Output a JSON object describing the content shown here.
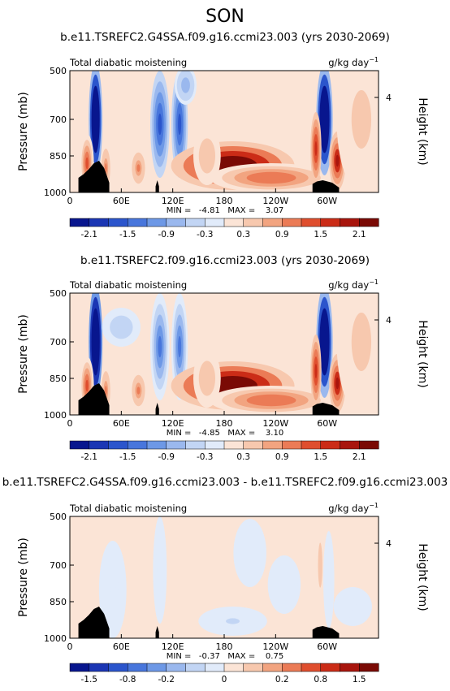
{
  "figure": {
    "season": "SON"
  },
  "chart_data": [
    {
      "type": "heatmap",
      "title": "b.e11.TSREFC2.G4SSA.f09.g16.ccmi23.003 (yrs 2030-2069)",
      "left_label": "Total diabatic moistening",
      "units_label": "g/kg day",
      "units_exponent": "−1",
      "ylabel": "Pressure (mb)",
      "y2label": "Height (km)",
      "yticks": [
        "500",
        "700",
        "850",
        "1000"
      ],
      "yticks_right": [
        "4"
      ],
      "xticks": [
        "0",
        "60E",
        "120E",
        "180",
        "120W",
        "60W"
      ],
      "stats": "MIN =   -4.81   MAX =    3.07",
      "colorbar_labels": [
        "-2.1",
        "-1.5",
        "-0.9",
        "-0.3",
        "0.3",
        "0.9",
        "1.5",
        "2.1"
      ],
      "colorbar_colors": [
        "#08168e",
        "#1b36b4",
        "#2b55cc",
        "#4876dc",
        "#6d98e6",
        "#9ab8ee",
        "#c2d5f4",
        "#e1ebfa",
        "#fbe4d6",
        "#f7c8ae",
        "#f2a480",
        "#eb7b56",
        "#df4e2e",
        "#cb2c17",
        "#a8150d",
        "#7a0a05"
      ],
      "fields": [
        {
          "lon": 30,
          "p": 700,
          "w": 5,
          "h": 230,
          "v": -4.5
        },
        {
          "lon": 20,
          "p": 880,
          "w": 5,
          "h": 120,
          "v": 1.5
        },
        {
          "lon": 42,
          "p": 900,
          "w": 4,
          "h": 100,
          "v": 1.0
        },
        {
          "lon": 105,
          "p": 720,
          "w": 7,
          "h": 220,
          "v": -1.8
        },
        {
          "lon": 128,
          "p": 720,
          "w": 6,
          "h": 220,
          "v": -1.7
        },
        {
          "lon": 135,
          "p": 560,
          "w": 8,
          "h": 80,
          "v": -0.8
        },
        {
          "lon": 190,
          "p": 890,
          "w": 45,
          "h": 100,
          "v": 2.8
        },
        {
          "lon": 235,
          "p": 940,
          "w": 45,
          "h": 60,
          "v": 1.2
        },
        {
          "lon": 297,
          "p": 700,
          "w": 6,
          "h": 230,
          "v": -4.0
        },
        {
          "lon": 287,
          "p": 820,
          "w": 4,
          "h": 150,
          "v": 1.6
        },
        {
          "lon": 312,
          "p": 870,
          "w": 6,
          "h": 120,
          "v": 2.0
        },
        {
          "lon": 80,
          "p": 900,
          "w": 6,
          "h": 80,
          "v": 1.0
        },
        {
          "lon": 160,
          "p": 850,
          "w": 10,
          "h": 120,
          "v": 0.6
        },
        {
          "lon": 340,
          "p": 700,
          "w": 18,
          "h": 300,
          "v": 0.5
        }
      ],
      "terrain": [
        [
          10,
          940
        ],
        [
          16,
          925
        ],
        [
          22,
          905
        ],
        [
          28,
          880
        ],
        [
          34,
          870
        ],
        [
          40,
          900
        ],
        [
          46,
          960
        ],
        [
          100,
          975
        ],
        [
          102,
          950
        ],
        [
          104,
          975
        ],
        [
          283,
          965
        ],
        [
          288,
          955
        ],
        [
          295,
          950
        ],
        [
          306,
          960
        ],
        [
          314,
          980
        ]
      ]
    },
    {
      "type": "heatmap",
      "title": "b.e11.TSREFC2.f09.g16.ccmi23.003 (yrs 2030-2069)",
      "left_label": "Total diabatic moistening",
      "units_label": "g/kg day",
      "units_exponent": "−1",
      "ylabel": "Pressure (mb)",
      "y2label": "Height (km)",
      "yticks": [
        "500",
        "700",
        "850",
        "1000"
      ],
      "yticks_right": [
        "4"
      ],
      "xticks": [
        "0",
        "60E",
        "120E",
        "180",
        "120W",
        "60W"
      ],
      "stats": "MIN =   -4.85   MAX =    3.10",
      "colorbar_labels": [
        "-2.1",
        "-1.5",
        "-0.9",
        "-0.3",
        "0.3",
        "0.9",
        "1.5",
        "2.1"
      ],
      "colorbar_colors": [
        "#08168e",
        "#1b36b4",
        "#2b55cc",
        "#4876dc",
        "#6d98e6",
        "#9ab8ee",
        "#c2d5f4",
        "#e1ebfa",
        "#fbe4d6",
        "#f7c8ae",
        "#f2a480",
        "#eb7b56",
        "#df4e2e",
        "#cb2c17",
        "#a8150d",
        "#7a0a05"
      ],
      "fields": [
        {
          "lon": 30,
          "p": 700,
          "w": 5,
          "h": 230,
          "v": -4.6
        },
        {
          "lon": 20,
          "p": 880,
          "w": 5,
          "h": 120,
          "v": 1.5
        },
        {
          "lon": 42,
          "p": 900,
          "w": 4,
          "h": 100,
          "v": 1.0
        },
        {
          "lon": 105,
          "p": 720,
          "w": 7,
          "h": 220,
          "v": -1.3
        },
        {
          "lon": 128,
          "p": 720,
          "w": 6,
          "h": 220,
          "v": -1.5
        },
        {
          "lon": 60,
          "p": 640,
          "w": 14,
          "h": 80,
          "v": -0.6
        },
        {
          "lon": 190,
          "p": 880,
          "w": 45,
          "h": 100,
          "v": 3.0
        },
        {
          "lon": 235,
          "p": 940,
          "w": 45,
          "h": 60,
          "v": 1.2
        },
        {
          "lon": 297,
          "p": 700,
          "w": 6,
          "h": 230,
          "v": -4.2
        },
        {
          "lon": 287,
          "p": 820,
          "w": 4,
          "h": 150,
          "v": 1.6
        },
        {
          "lon": 312,
          "p": 870,
          "w": 6,
          "h": 120,
          "v": 2.0
        },
        {
          "lon": 80,
          "p": 900,
          "w": 6,
          "h": 80,
          "v": 1.0
        },
        {
          "lon": 160,
          "p": 850,
          "w": 10,
          "h": 120,
          "v": 0.6
        },
        {
          "lon": 340,
          "p": 700,
          "w": 18,
          "h": 300,
          "v": 0.5
        }
      ],
      "terrain": [
        [
          10,
          940
        ],
        [
          16,
          925
        ],
        [
          22,
          905
        ],
        [
          28,
          880
        ],
        [
          34,
          870
        ],
        [
          40,
          900
        ],
        [
          46,
          960
        ],
        [
          100,
          975
        ],
        [
          102,
          950
        ],
        [
          104,
          975
        ],
        [
          283,
          965
        ],
        [
          288,
          955
        ],
        [
          295,
          950
        ],
        [
          306,
          960
        ],
        [
          314,
          980
        ]
      ]
    },
    {
      "type": "heatmap",
      "title": "b.e11.TSREFC2.G4SSA.f09.g16.ccmi23.003 - b.e11.TSREFC2.f09.g16.ccmi23.003",
      "left_label": "Total diabatic moistening",
      "units_label": "g/kg day",
      "units_exponent": "−1",
      "ylabel": "Pressure (mb)",
      "y2label": "Height (km)",
      "yticks": [
        "500",
        "700",
        "850",
        "1000"
      ],
      "yticks_right": [
        "4"
      ],
      "xticks": [
        "0",
        "60E",
        "120E",
        "180",
        "120W",
        "60W"
      ],
      "stats": "MIN =   -0.37   MAX =    0.75",
      "colorbar_labels": [
        "-1.5",
        "-0.8",
        "-0.2",
        "0",
        "0.2",
        "0.8",
        "1.5"
      ],
      "colorbar_colors": [
        "#08168e",
        "#1b36b4",
        "#2b55cc",
        "#4876dc",
        "#6d98e6",
        "#9ab8ee",
        "#c2d5f4",
        "#e1ebfa",
        "#fbe4d6",
        "#f7c8ae",
        "#f2a480",
        "#eb7b56",
        "#df4e2e",
        "#cb2c17",
        "#a8150d",
        "#7a0a05"
      ],
      "fields": [
        {
          "lon": 28,
          "p": 700,
          "w": 4,
          "h": 230,
          "v": 0.2
        },
        {
          "lon": 50,
          "p": 800,
          "w": 10,
          "h": 200,
          "v": -0.12
        },
        {
          "lon": 105,
          "p": 720,
          "w": 5,
          "h": 220,
          "v": -0.15
        },
        {
          "lon": 128,
          "p": 720,
          "w": 5,
          "h": 220,
          "v": 0.15
        },
        {
          "lon": 150,
          "p": 820,
          "w": 8,
          "h": 180,
          "v": 0.12
        },
        {
          "lon": 190,
          "p": 930,
          "w": 25,
          "h": 60,
          "v": -0.25
        },
        {
          "lon": 210,
          "p": 650,
          "w": 12,
          "h": 140,
          "v": -0.1
        },
        {
          "lon": 250,
          "p": 780,
          "w": 12,
          "h": 120,
          "v": -0.08
        },
        {
          "lon": 292,
          "p": 700,
          "w": 4,
          "h": 230,
          "v": 0.35
        },
        {
          "lon": 302,
          "p": 760,
          "w": 4,
          "h": 200,
          "v": -0.18
        },
        {
          "lon": 330,
          "p": 870,
          "w": 14,
          "h": 80,
          "v": -0.12
        },
        {
          "lon": 75,
          "p": 920,
          "w": 6,
          "h": 60,
          "v": 0.1
        }
      ],
      "terrain": [
        [
          10,
          940
        ],
        [
          16,
          925
        ],
        [
          22,
          905
        ],
        [
          28,
          880
        ],
        [
          34,
          870
        ],
        [
          40,
          900
        ],
        [
          46,
          960
        ],
        [
          100,
          975
        ],
        [
          102,
          950
        ],
        [
          104,
          975
        ],
        [
          283,
          965
        ],
        [
          288,
          955
        ],
        [
          295,
          950
        ],
        [
          306,
          960
        ],
        [
          314,
          980
        ]
      ]
    }
  ]
}
